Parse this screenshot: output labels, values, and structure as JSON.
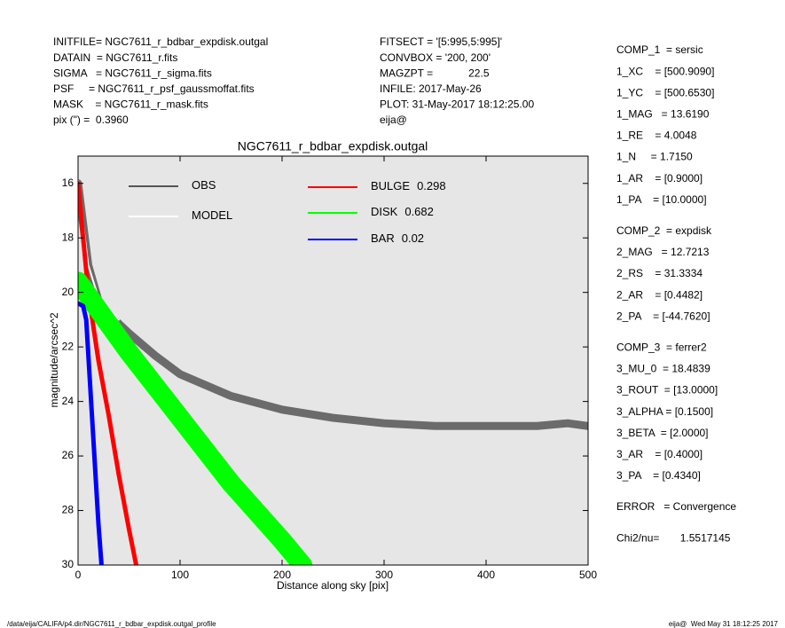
{
  "header": {
    "left": [
      "INITFILE= NGC7611_r_bdbar_expdisk.outgal",
      "DATAIN  = NGC7611_r.fits",
      "SIGMA   = NGC7611_r_sigma.fits",
      "PSF     = NGC7611_r_psf_gaussmoffat.fits",
      "MASK    = NGC7611_r_mask.fits",
      "pix (\") =  0.3960"
    ],
    "middle": [
      "FITSECT = '[5:995,5:995]'",
      "CONVBOX = '200, 200'",
      "MAGZPT =            22.5",
      "INFILE: 2017-May-26",
      "PLOT: 31-May-2017 18:12:25.00",
      "eija@"
    ]
  },
  "parameters": [
    [
      "COMP_1  = sersic",
      "1_XC    = [500.9090]",
      "1_YC    = [500.6530]",
      "1_MAG   = 13.6190",
      "1_RE    = 4.0048",
      "1_N     = 1.7150",
      "1_AR    = [0.9000]",
      "1_PA    = [10.0000]"
    ],
    [
      "COMP_2  = expdisk",
      "2_MAG   = 12.7213",
      "2_RS    = 31.3334",
      "2_AR    = [0.4482]",
      "2_PA    = [-44.7620]"
    ],
    [
      "COMP_3  = ferrer2",
      "3_MU_0  = 18.4839",
      "3_ROUT  = [13.0000]",
      "3_ALPHA = [0.1500]",
      "3_BETA  = [2.0000]",
      "3_AR    = [0.4000]",
      "3_PA    = [0.4340]"
    ],
    [
      "ERROR   = Convergence"
    ],
    [
      "Chi2/nu=       1.5517145"
    ]
  ],
  "footer": {
    "left": "/data/eija/CALIFA/p4.dir/NGC7611_r_bdbar_expdisk.outgal_profile",
    "right": "eija@  Wed May 31 18:12:25 2017"
  },
  "chart_data": {
    "type": "line",
    "title": "NGC7611_r_bdbar_expdisk.outgal",
    "x_label": "Distance along sky [pix]",
    "y_label": "magnitude/arcsec^2",
    "xlim": [
      0,
      500
    ],
    "ylim": [
      30,
      15
    ],
    "xticks": [
      0,
      100,
      200,
      300,
      400,
      500
    ],
    "yticks": [
      16,
      18,
      20,
      22,
      24,
      26,
      28,
      30
    ],
    "series": [
      {
        "name": "OBS",
        "color": "#555555",
        "x": [
          0,
          5,
          10,
          20,
          30,
          50,
          75,
          100,
          150,
          200,
          250,
          300,
          350,
          400,
          450,
          480,
          500
        ],
        "values": [
          16,
          17.5,
          19,
          20.3,
          20.8,
          21.5,
          22.3,
          23,
          23.8,
          24.3,
          24.6,
          24.8,
          24.9,
          24.9,
          24.9,
          24.8,
          24.9
        ]
      },
      {
        "name": "MODEL",
        "color": "#ffffff",
        "x": [
          0,
          5,
          10,
          20,
          40
        ],
        "values": [
          15.9,
          17.5,
          19,
          20.2,
          21
        ]
      },
      {
        "name": "BULGE",
        "fraction": 0.298,
        "color": "#ff0000",
        "x": [
          0,
          5,
          10,
          20,
          30,
          40,
          50,
          57
        ],
        "values": [
          16,
          18,
          20,
          22.5,
          24.5,
          26.7,
          28.7,
          30
        ]
      },
      {
        "name": "DISK",
        "fraction": 0.682,
        "color": "#00ff00",
        "x": [
          0,
          50,
          100,
          150,
          200,
          220
        ],
        "values": [
          19.6,
          22.2,
          24.6,
          27,
          29.1,
          30
        ]
      },
      {
        "name": "BAR",
        "fraction": 0.02,
        "color": "#0000ff",
        "x": [
          0,
          5,
          8,
          12,
          16,
          20,
          23
        ],
        "values": [
          20.4,
          20.5,
          21,
          23.5,
          26,
          28.5,
          30
        ]
      }
    ]
  }
}
